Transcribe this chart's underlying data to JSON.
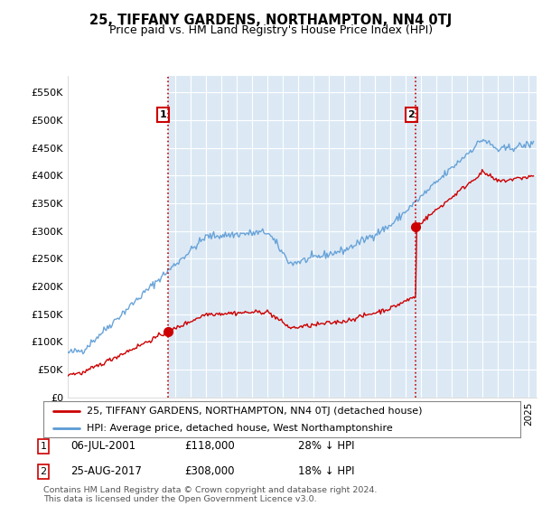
{
  "title": "25, TIFFANY GARDENS, NORTHAMPTON, NN4 0TJ",
  "subtitle": "Price paid vs. HM Land Registry's House Price Index (HPI)",
  "ylabel_ticks": [
    "£0",
    "£50K",
    "£100K",
    "£150K",
    "£200K",
    "£250K",
    "£300K",
    "£350K",
    "£400K",
    "£450K",
    "£500K",
    "£550K"
  ],
  "ytick_values": [
    0,
    50000,
    100000,
    150000,
    200000,
    250000,
    300000,
    350000,
    400000,
    450000,
    500000,
    550000
  ],
  "ylim": [
    0,
    580000
  ],
  "xlim_start": 1995.0,
  "xlim_end": 2025.5,
  "background_color": "#ffffff",
  "plot_bg_color": "#dce9f5",
  "plot_bg_left_color": "#ffffff",
  "grid_color": "#ffffff",
  "hpi_color": "#5b9bd5",
  "price_color": "#cc0000",
  "vline_color": "#cc0000",
  "vline_style": ":",
  "sale1_date": 2001.52,
  "sale1_price": 118000,
  "sale1_label": "1",
  "sale2_date": 2017.65,
  "sale2_price": 308000,
  "sale2_label": "2",
  "legend_line1": "25, TIFFANY GARDENS, NORTHAMPTON, NN4 0TJ (detached house)",
  "legend_line2": "HPI: Average price, detached house, West Northamptonshire",
  "annotation1_date": "06-JUL-2001",
  "annotation1_price": "£118,000",
  "annotation1_hpi": "28% ↓ HPI",
  "annotation2_date": "25-AUG-2017",
  "annotation2_price": "£308,000",
  "annotation2_hpi": "18% ↓ HPI",
  "footer": "Contains HM Land Registry data © Crown copyright and database right 2024.\nThis data is licensed under the Open Government Licence v3.0."
}
